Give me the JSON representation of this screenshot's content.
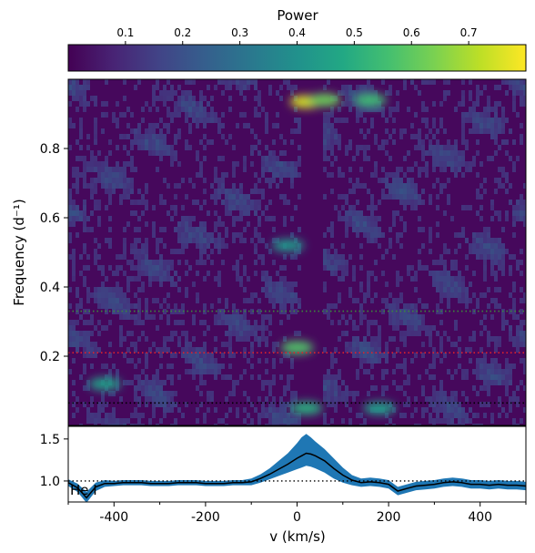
{
  "chart_data": [
    {
      "type": "heatmap",
      "colorbar": {
        "label": "Power",
        "colormap": "viridis",
        "range": [
          0.0,
          0.8
        ],
        "ticks": [
          0.1,
          0.2,
          0.3,
          0.4,
          0.5,
          0.6,
          0.7
        ],
        "tick_labels": [
          "0.1",
          "0.2",
          "0.3",
          "0.4",
          "0.5",
          "0.6",
          "0.7"
        ],
        "placement": "top"
      },
      "xlim": [
        -500,
        500
      ],
      "ylim": [
        0.0,
        1.0
      ],
      "ylabel": "Frequency (d⁻¹)",
      "yticks": [
        0.2,
        0.4,
        0.6,
        0.8
      ],
      "ytick_labels": [
        "0.2",
        "0.4",
        "0.6",
        "0.8"
      ],
      "hlines": [
        {
          "y": 0.33,
          "color": "#3a8a3a",
          "style": "dotted"
        },
        {
          "y": 0.21,
          "color": "#e0202a",
          "style": "dotted"
        },
        {
          "y": 0.065,
          "color": "#000000",
          "style": "dotted"
        }
      ],
      "features": [
        {
          "v": 20,
          "freq": 0.935,
          "power": 0.75
        },
        {
          "v": 60,
          "freq": 0.94,
          "power": 0.62
        },
        {
          "v": 160,
          "freq": 0.94,
          "power": 0.55
        },
        {
          "v": 0,
          "freq": 0.225,
          "power": 0.58
        },
        {
          "v": -420,
          "freq": 0.12,
          "power": 0.45
        },
        {
          "v": -20,
          "freq": 0.52,
          "power": 0.42
        },
        {
          "v": 180,
          "freq": 0.05,
          "power": 0.45
        },
        {
          "v": 20,
          "freq": 0.05,
          "power": 0.5
        }
      ]
    },
    {
      "type": "line",
      "xlabel": "v (km/s)",
      "xlim": [
        -500,
        500
      ],
      "ylim": [
        0.75,
        1.65
      ],
      "xticks": [
        -400,
        -200,
        0,
        200,
        400
      ],
      "xtick_labels": [
        "-400",
        "-200",
        "0",
        "200",
        "400"
      ],
      "yticks": [
        1.0,
        1.5
      ],
      "ytick_labels": [
        "1.0",
        "1.5"
      ],
      "annotation": "He I",
      "reference_line": {
        "y": 1.0,
        "style": "dotted"
      },
      "x": [
        -500,
        -480,
        -460,
        -440,
        -420,
        -400,
        -380,
        -360,
        -340,
        -320,
        -300,
        -280,
        -260,
        -240,
        -220,
        -200,
        -180,
        -160,
        -140,
        -120,
        -100,
        -80,
        -60,
        -40,
        -20,
        0,
        10,
        20,
        30,
        40,
        60,
        80,
        100,
        120,
        140,
        160,
        180,
        200,
        220,
        240,
        260,
        280,
        300,
        320,
        340,
        360,
        380,
        400,
        420,
        440,
        460,
        480,
        500
      ],
      "series": [
        {
          "name": "",
          "color": "#000000",
          "values": [
            0.98,
            0.92,
            0.8,
            0.93,
            0.97,
            0.97,
            0.98,
            0.98,
            0.98,
            0.97,
            0.97,
            0.97,
            0.98,
            0.98,
            0.98,
            0.97,
            0.97,
            0.97,
            0.98,
            0.98,
            0.99,
            1.03,
            1.08,
            1.14,
            1.2,
            1.27,
            1.3,
            1.33,
            1.32,
            1.3,
            1.24,
            1.15,
            1.07,
            1.01,
            0.98,
            0.99,
            0.98,
            0.96,
            0.88,
            0.91,
            0.94,
            0.95,
            0.96,
            0.98,
            0.99,
            0.98,
            0.96,
            0.96,
            0.95,
            0.96,
            0.95,
            0.95,
            0.94
          ]
        },
        {
          "name": "",
          "color": "#1f77b4",
          "type": "band",
          "lower": [
            0.94,
            0.87,
            0.74,
            0.88,
            0.93,
            0.94,
            0.95,
            0.95,
            0.95,
            0.94,
            0.94,
            0.94,
            0.95,
            0.95,
            0.95,
            0.94,
            0.94,
            0.94,
            0.95,
            0.95,
            0.95,
            0.98,
            1.02,
            1.06,
            1.1,
            1.14,
            1.16,
            1.18,
            1.17,
            1.15,
            1.1,
            1.03,
            0.98,
            0.95,
            0.93,
            0.94,
            0.93,
            0.91,
            0.83,
            0.86,
            0.89,
            0.9,
            0.91,
            0.93,
            0.94,
            0.93,
            0.91,
            0.91,
            0.9,
            0.91,
            0.9,
            0.9,
            0.89
          ],
          "upper": [
            1.02,
            0.97,
            0.87,
            0.98,
            1.01,
            1.0,
            1.01,
            1.01,
            1.01,
            1.0,
            1.0,
            1.0,
            1.01,
            1.01,
            1.01,
            1.0,
            1.0,
            1.0,
            1.01,
            1.01,
            1.03,
            1.08,
            1.15,
            1.24,
            1.33,
            1.45,
            1.52,
            1.56,
            1.52,
            1.47,
            1.38,
            1.27,
            1.16,
            1.07,
            1.03,
            1.04,
            1.03,
            1.01,
            0.93,
            0.96,
            0.99,
            1.0,
            1.01,
            1.03,
            1.04,
            1.03,
            1.01,
            1.01,
            1.0,
            1.01,
            1.0,
            1.0,
            0.99
          ]
        }
      ]
    }
  ]
}
